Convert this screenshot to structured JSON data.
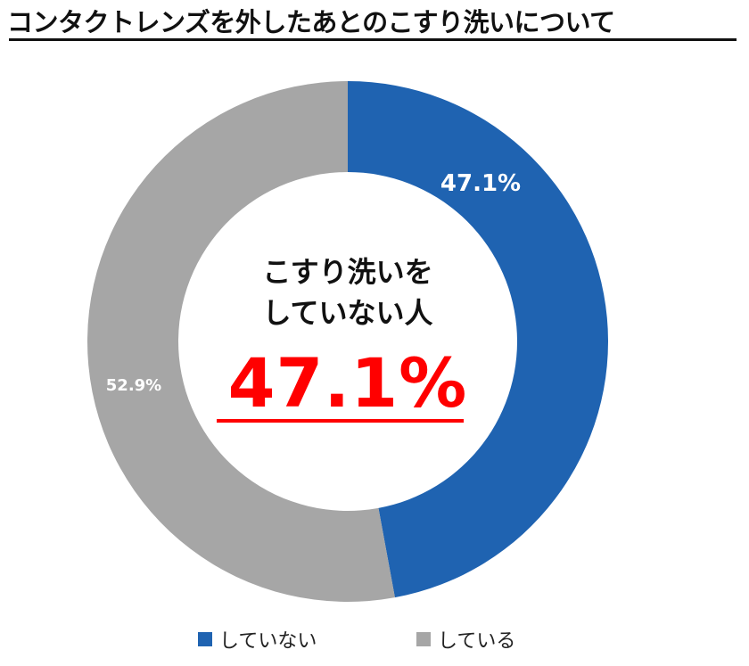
{
  "chart_data": {
    "type": "pie",
    "title": "コンタクトレンズを外したあとのこすり洗いについて",
    "center_label_lines": [
      "こすり洗いを",
      "していない人"
    ],
    "center_value": "47.1%",
    "slices": [
      {
        "name": "していない",
        "value": 47.1,
        "label": "47.1%",
        "color": "#1f63b1",
        "label_color": "#ffffff"
      },
      {
        "name": "している",
        "value": 52.9,
        "label": "52.9%",
        "color": "#a6a6a6",
        "label_color": "#ffffff"
      }
    ],
    "legend": {
      "placement": "bottom"
    }
  }
}
